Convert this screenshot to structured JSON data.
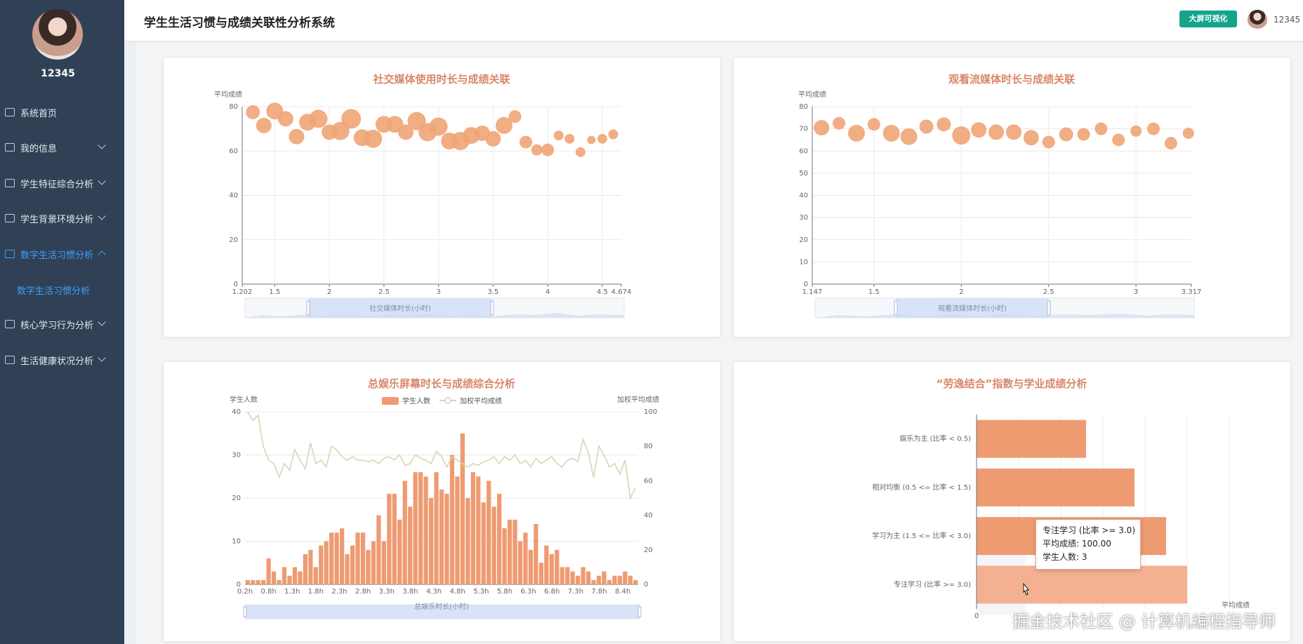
{
  "app": {
    "title": "学生生活习惯与成绩关联性分析系统"
  },
  "header": {
    "bigscreen_label": "大屏可视化",
    "username": "12345"
  },
  "sidebar": {
    "username": "12345",
    "items": [
      {
        "label": "系统首页",
        "icon": "home-icon",
        "expandable": false
      },
      {
        "label": "我的信息",
        "icon": "id-card-icon",
        "expandable": true
      },
      {
        "label": "学生特征综合分析",
        "icon": "grid-icon",
        "expandable": true
      },
      {
        "label": "学生背景环境分析",
        "icon": "building-icon",
        "expandable": true
      },
      {
        "label": "数字生活习惯分析",
        "icon": "phone-icon",
        "expandable": true,
        "active": true
      },
      {
        "label": "核心学习行为分析",
        "icon": "chart-icon",
        "expandable": true
      },
      {
        "label": "生活健康状况分析",
        "icon": "scan-icon",
        "expandable": true
      }
    ],
    "subitem": "数字生活习惯分析"
  },
  "colors": {
    "accent": "#409eff",
    "sidebar": "#304156",
    "bubble": "#f0a476",
    "bar": "#ee9b72",
    "line": "#d8d4b5",
    "button": "#13a58a"
  },
  "chart_data": [
    {
      "type": "scatter",
      "title": "社交媒体使用时长与成绩关联",
      "ylabel": "平均成绩",
      "xlabel": "社交媒体时长(小时)",
      "ylim": [
        0,
        80
      ],
      "yticks": [
        "0",
        "20",
        "40",
        "60",
        "80"
      ],
      "xlim": [
        1.202,
        4.674
      ],
      "xticks": [
        "1.202",
        "1.5",
        "2",
        "2.5",
        "3",
        "3.5",
        "4",
        "4.5",
        "4.674"
      ],
      "points": [
        [
          1.3,
          77.5
        ],
        [
          1.4,
          71.5
        ],
        [
          1.5,
          78
        ],
        [
          1.6,
          74.5
        ],
        [
          1.7,
          66.5
        ],
        [
          1.8,
          73
        ],
        [
          1.9,
          74.5
        ],
        [
          2.0,
          68.5
        ],
        [
          2.1,
          69
        ],
        [
          2.2,
          74.5
        ],
        [
          2.3,
          66
        ],
        [
          2.4,
          65.5
        ],
        [
          2.5,
          72
        ],
        [
          2.6,
          72
        ],
        [
          2.7,
          68.5
        ],
        [
          2.8,
          73.5
        ],
        [
          2.9,
          68.5
        ],
        [
          3.0,
          71
        ],
        [
          3.1,
          64.5
        ],
        [
          3.2,
          64.5
        ],
        [
          3.3,
          67
        ],
        [
          3.4,
          68
        ],
        [
          3.5,
          65.5
        ],
        [
          3.6,
          71.5
        ],
        [
          3.7,
          75.5
        ],
        [
          3.8,
          64
        ],
        [
          3.9,
          60.5
        ],
        [
          4.0,
          60.5
        ],
        [
          4.1,
          67
        ],
        [
          4.2,
          65.5
        ],
        [
          4.3,
          59.5
        ],
        [
          4.4,
          65
        ],
        [
          4.5,
          65.5
        ],
        [
          4.6,
          67.5
        ]
      ],
      "sizes": [
        10,
        11,
        12,
        11,
        11,
        12,
        13,
        11,
        13,
        14,
        12,
        13,
        12,
        12,
        11,
        13,
        13,
        13,
        12,
        13,
        12,
        11,
        11,
        12,
        9,
        9,
        8,
        9,
        7,
        7,
        7,
        6,
        7,
        7
      ]
    },
    {
      "type": "scatter",
      "title": "观看流媒体时长与成绩关联",
      "ylabel": "平均成绩",
      "xlabel": "观看流媒体时长(小时)",
      "ylim": [
        0,
        80
      ],
      "yticks": [
        "0",
        "10",
        "20",
        "30",
        "40",
        "50",
        "60",
        "70",
        "80"
      ],
      "xlim": [
        1.147,
        3.317
      ],
      "xticks": [
        "1.147",
        "1.5",
        "2",
        "2.5",
        "3",
        "3.317"
      ],
      "points": [
        [
          1.2,
          70.5
        ],
        [
          1.3,
          72.5
        ],
        [
          1.4,
          68
        ],
        [
          1.5,
          72
        ],
        [
          1.6,
          68
        ],
        [
          1.7,
          66.5
        ],
        [
          1.8,
          71
        ],
        [
          1.9,
          72
        ],
        [
          2.0,
          67
        ],
        [
          2.1,
          69.5
        ],
        [
          2.2,
          68.5
        ],
        [
          2.3,
          68.5
        ],
        [
          2.4,
          66
        ],
        [
          2.5,
          64
        ],
        [
          2.6,
          67.5
        ],
        [
          2.7,
          67.5
        ],
        [
          2.8,
          70
        ],
        [
          2.9,
          65
        ],
        [
          3.0,
          69
        ],
        [
          3.1,
          70
        ],
        [
          3.2,
          63.5
        ],
        [
          3.3,
          68
        ]
      ],
      "sizes": [
        11,
        9,
        12,
        9,
        12,
        12,
        10,
        10,
        13,
        11,
        11,
        11,
        11,
        9,
        10,
        9,
        9,
        9,
        8,
        9,
        9,
        8
      ]
    },
    {
      "type": "bar",
      "title": "总娱乐屏幕时长与成绩综合分析",
      "ylabel": "学生人数",
      "ylabel_right": "加权平均成绩",
      "xlabel": "总娱乐时长(小时)",
      "legend": [
        "学生人数",
        "加权平均成绩"
      ],
      "ylim": [
        0,
        40
      ],
      "ylim_right": [
        0,
        100
      ],
      "yticks": [
        "0",
        "10",
        "20",
        "30",
        "40"
      ],
      "yticks_right": [
        "0",
        "20",
        "40",
        "60",
        "80",
        "100"
      ],
      "xticks": [
        "0.2h",
        "0.8h",
        "1.3h",
        "1.8h",
        "2.3h",
        "2.8h",
        "3.3h",
        "3.8h",
        "4.3h",
        "4.8h",
        "5.3h",
        "5.8h",
        "6.3h",
        "6.8h",
        "7.3h",
        "7.8h",
        "8.4h"
      ],
      "series": [
        {
          "name": "学生人数",
          "values": [
            1,
            1,
            1,
            1,
            6,
            3,
            1,
            4,
            2,
            4,
            3,
            7,
            8,
            4,
            9,
            10,
            12,
            12,
            13,
            7,
            9,
            12,
            12,
            8,
            10,
            16,
            10,
            21,
            21,
            15,
            24,
            18,
            26,
            26,
            25,
            20,
            26,
            22,
            21,
            30,
            25,
            35,
            20,
            26,
            25,
            19,
            24,
            18,
            21,
            13,
            15,
            15,
            10,
            12,
            8,
            14,
            5,
            9,
            7,
            8,
            4,
            4,
            3,
            2,
            4,
            3,
            1,
            2,
            3,
            1,
            2,
            2,
            3,
            2,
            1
          ]
        },
        {
          "name": "加权平均成绩",
          "values": [
            100,
            95,
            98,
            80,
            72,
            70,
            62,
            70,
            66,
            78,
            72,
            67,
            82,
            70,
            72,
            68,
            80,
            78,
            74,
            72,
            74,
            72,
            72,
            71,
            72,
            70,
            73,
            74,
            72,
            75,
            69,
            70,
            75,
            73,
            72,
            70,
            77,
            74,
            68,
            74,
            72,
            70,
            68,
            70,
            69,
            71,
            72,
            74,
            70,
            74,
            72,
            75,
            70,
            72,
            68,
            73,
            70,
            72,
            74,
            70,
            68,
            72,
            73,
            71,
            84,
            76,
            62,
            80,
            75,
            68,
            70,
            64,
            72,
            50,
            56
          ]
        }
      ]
    },
    {
      "type": "bar",
      "title": "“劳逸结合”指数与学业成绩分析",
      "orientation": "horizontal",
      "categories": [
        "专注学习 (比率 >= 3.0)",
        "学习为主 (1.5 <= 比率 < 3.0)",
        "相对均衡 (0.5 <= 比率 < 1.5)",
        "娱乐为主 (比率 < 0.5)"
      ],
      "values": [
        100,
        90,
        75,
        52
      ],
      "xtick_first": "0",
      "xlabel": "平均成绩",
      "xlim": [
        0,
        120
      ]
    }
  ],
  "tooltip": {
    "title": "专注学习 (比率 >= 3.0)",
    "line1": "平均成绩: 100.00",
    "line2": "学生人数: 3"
  },
  "watermark": "掘金技术社区 @ 计算机编程指导师"
}
